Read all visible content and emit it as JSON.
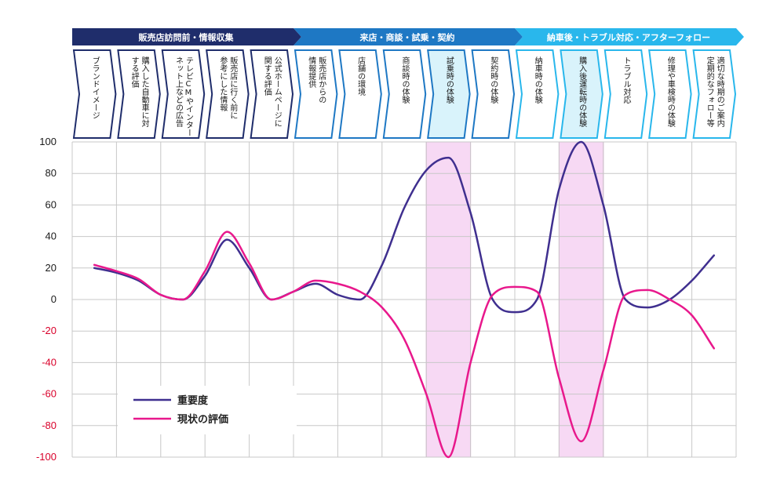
{
  "phases": [
    {
      "label": "販売店訪問前・情報収集",
      "color": "#1f2d6b",
      "from": 0,
      "to": 5
    },
    {
      "label": "来店・商談・試乗・契約",
      "color": "#1e78c4",
      "from": 5,
      "to": 10
    },
    {
      "label": "納車後・トラブル対応・アフターフォロー",
      "color": "#29b7ec",
      "from": 10,
      "to": 15
    }
  ],
  "steps": [
    {
      "lines": [
        "ブランドイメージ"
      ],
      "phase": 0
    },
    {
      "lines": [
        "購入した自動車に対",
        "する評価"
      ],
      "phase": 0
    },
    {
      "lines": [
        "テレビCMやインター",
        "ネット上などの広告"
      ],
      "phase": 0
    },
    {
      "lines": [
        "販売店に行く前に",
        "参考にした情報"
      ],
      "phase": 0
    },
    {
      "lines": [
        "公式ホームページに",
        "関する評価"
      ],
      "phase": 0
    },
    {
      "lines": [
        "販売店からの",
        "情報提供"
      ],
      "phase": 1
    },
    {
      "lines": [
        "店舗の環境"
      ],
      "phase": 1
    },
    {
      "lines": [
        "商談時の体験"
      ],
      "phase": 1
    },
    {
      "lines": [
        "試乗時の体験"
      ],
      "phase": 1,
      "highlight": true
    },
    {
      "lines": [
        "契約時の体験"
      ],
      "phase": 1
    },
    {
      "lines": [
        "納車時の体験"
      ],
      "phase": 2
    },
    {
      "lines": [
        "購入後運転時の体験"
      ],
      "phase": 2,
      "highlight": true
    },
    {
      "lines": [
        "トラブル対応"
      ],
      "phase": 2
    },
    {
      "lines": [
        "修理や車検時の体験"
      ],
      "phase": 2
    },
    {
      "lines": [
        "適切な時期のご案内",
        "定期的なフォロー等"
      ],
      "phase": 2
    }
  ],
  "chart_data": {
    "type": "line",
    "categories": [
      "ブランドイメージ",
      "購入した自動車に対する評価",
      "テレビCMやインターネット上などの広告",
      "販売店に行く前に参考にした情報",
      "公式ホームページに関する評価",
      "販売店からの情報提供",
      "店舗の環境",
      "商談時の体験",
      "試乗時の体験",
      "契約時の体験",
      "納車時の体験",
      "購入後運転時の体験",
      "トラブル対応",
      "修理や車検時の体験",
      "適切な時期のご案内定期的なフォロー等"
    ],
    "series": [
      {
        "name": "重要度",
        "color": "#3f2f8f",
        "x": [
          0.5,
          1.0,
          1.5,
          2.0,
          2.5,
          3.0,
          3.5,
          4.0,
          4.5,
          5.0,
          5.5,
          6.0,
          6.5,
          7.0,
          7.5,
          8.0,
          8.5,
          9.0,
          9.5,
          10.0,
          10.5,
          11.0,
          11.5,
          12.0,
          12.5,
          13.0,
          13.5,
          14.0,
          14.5
        ],
        "values": [
          20,
          17,
          12,
          3,
          0,
          15,
          38,
          20,
          0,
          5,
          10,
          3,
          0,
          22,
          58,
          82,
          90,
          55,
          0,
          -8,
          0,
          70,
          100,
          60,
          0,
          -5,
          0,
          12,
          28
        ]
      },
      {
        "name": "現状の評価",
        "color": "#e8188c",
        "x": [
          0.5,
          1.0,
          1.5,
          2.0,
          2.5,
          3.0,
          3.5,
          4.0,
          4.5,
          5.0,
          5.5,
          6.0,
          6.5,
          7.0,
          7.5,
          8.0,
          8.5,
          9.0,
          9.5,
          10.0,
          10.5,
          11.0,
          11.5,
          12.0,
          12.5,
          13.0,
          13.5,
          14.0,
          14.5
        ],
        "values": [
          22,
          18,
          13,
          3,
          0,
          18,
          43,
          23,
          0,
          5,
          12,
          10,
          5,
          -5,
          -25,
          -60,
          -100,
          -40,
          3,
          8,
          5,
          -50,
          -90,
          -45,
          3,
          6,
          0,
          -10,
          -31
        ]
      }
    ],
    "ylim": [
      -100,
      100
    ],
    "yticks": [
      "100",
      "80",
      "60",
      "40",
      "20",
      "0",
      "-20",
      "-40",
      "-60",
      "-80",
      "-100"
    ],
    "negative_tick_color": "#d9002a",
    "highlight_color": "#f7d9f4",
    "grid": true,
    "legend_position": "bottom-left"
  }
}
